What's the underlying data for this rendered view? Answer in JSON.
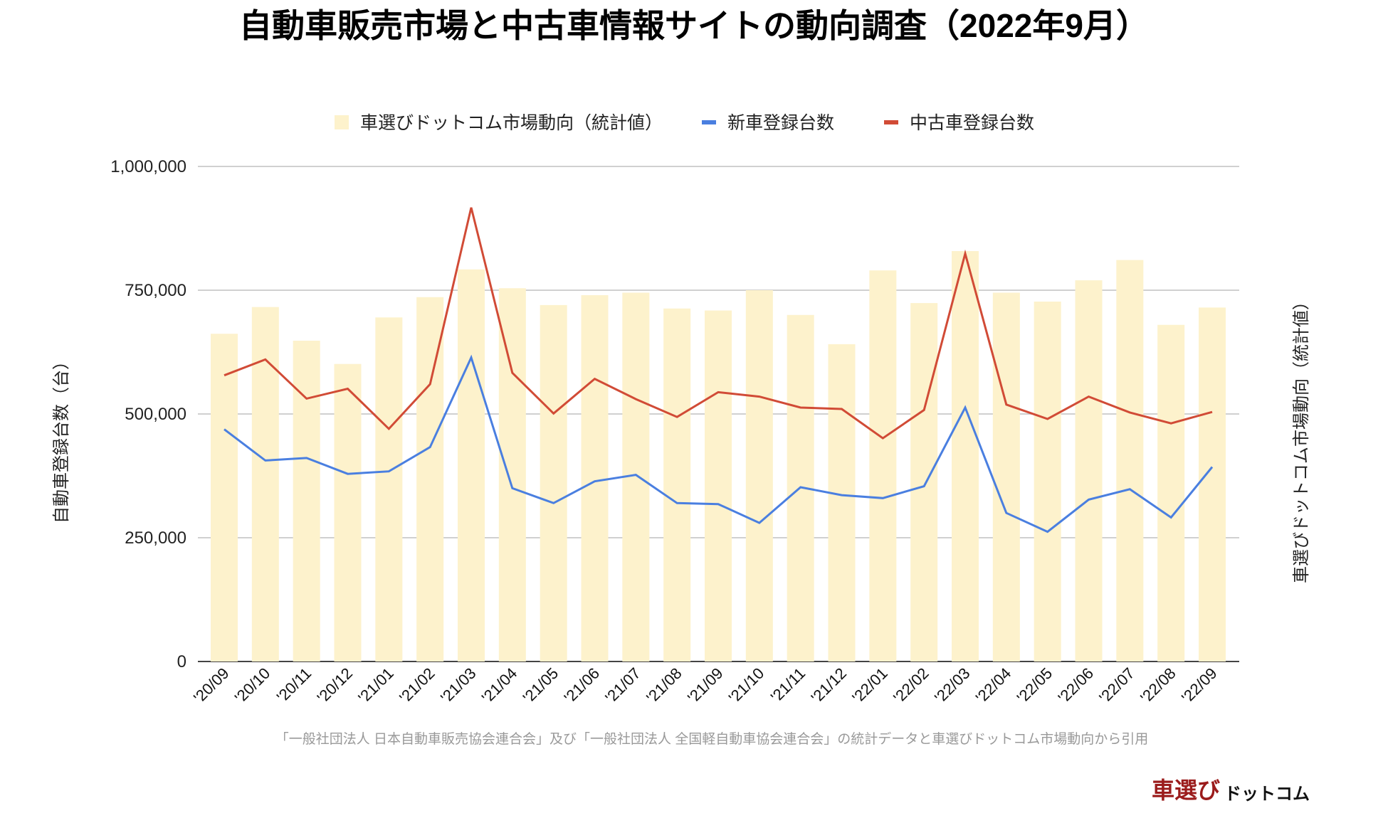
{
  "chart_data": {
    "type": "bar+line",
    "title": "自動車販売市場と中古車情報サイトの動向調査（2022年9月）",
    "ylabel": "自動車登録台数（台）",
    "y2label": "車選びドットコム市場動向（統計値）",
    "ylim": [
      0,
      1000000
    ],
    "yticks": [
      "0",
      "250,000",
      "500,000",
      "750,000",
      "1,000,000"
    ],
    "ytick_values": [
      0,
      250000,
      500000,
      750000,
      1000000
    ],
    "grid": true,
    "legend_position": "top",
    "categories": [
      "'20/09",
      "'20/10",
      "'20/11",
      "'20/12",
      "'21/01",
      "'21/02",
      "'21/03",
      "'21/04",
      "'21/05",
      "'21/06",
      "'21/07",
      "'21/08",
      "'21/09",
      "'21/10",
      "'21/11",
      "'21/12",
      "'22/01",
      "'22/02",
      "'22/03",
      "'22/04",
      "'22/05",
      "'22/06",
      "'22/07",
      "'22/08",
      "'22/09"
    ],
    "series": [
      {
        "name": "車選びドットコム市場動向（統計値）",
        "type": "bar",
        "color": "#fdf2cc",
        "values": [
          662000,
          716000,
          648000,
          601000,
          695000,
          736000,
          792000,
          754000,
          720000,
          740000,
          745000,
          713000,
          709000,
          750000,
          700000,
          641000,
          790000,
          724000,
          829000,
          745000,
          727000,
          770000,
          811000,
          680000,
          715000
        ]
      },
      {
        "name": "新車登録台数",
        "type": "line",
        "color": "#4a7fe0",
        "values": [
          469000,
          406000,
          411000,
          379000,
          384000,
          433000,
          614000,
          350000,
          320000,
          364000,
          377000,
          320000,
          318000,
          280000,
          352000,
          336000,
          330000,
          354000,
          513000,
          300000,
          262000,
          327000,
          348000,
          291000,
          393000
        ]
      },
      {
        "name": "中古車登録台数",
        "type": "line",
        "color": "#d14b36",
        "values": [
          578000,
          610000,
          531000,
          551000,
          470000,
          560000,
          917000,
          583000,
          501000,
          571000,
          530000,
          494000,
          544000,
          535000,
          513000,
          510000,
          451000,
          508000,
          824000,
          519000,
          490000,
          535000,
          503000,
          481000,
          504000
        ]
      }
    ],
    "source_note": "「一般社団法人 日本自動車販売協会連合会」及び「一般社団法人 全国軽自動車協会連合会」の統計データと車選びドットコム市場動向から引用"
  },
  "logo": {
    "text_red": "車選び",
    "text_black": "ドットコム",
    "color_red": "#9b1c1c"
  }
}
